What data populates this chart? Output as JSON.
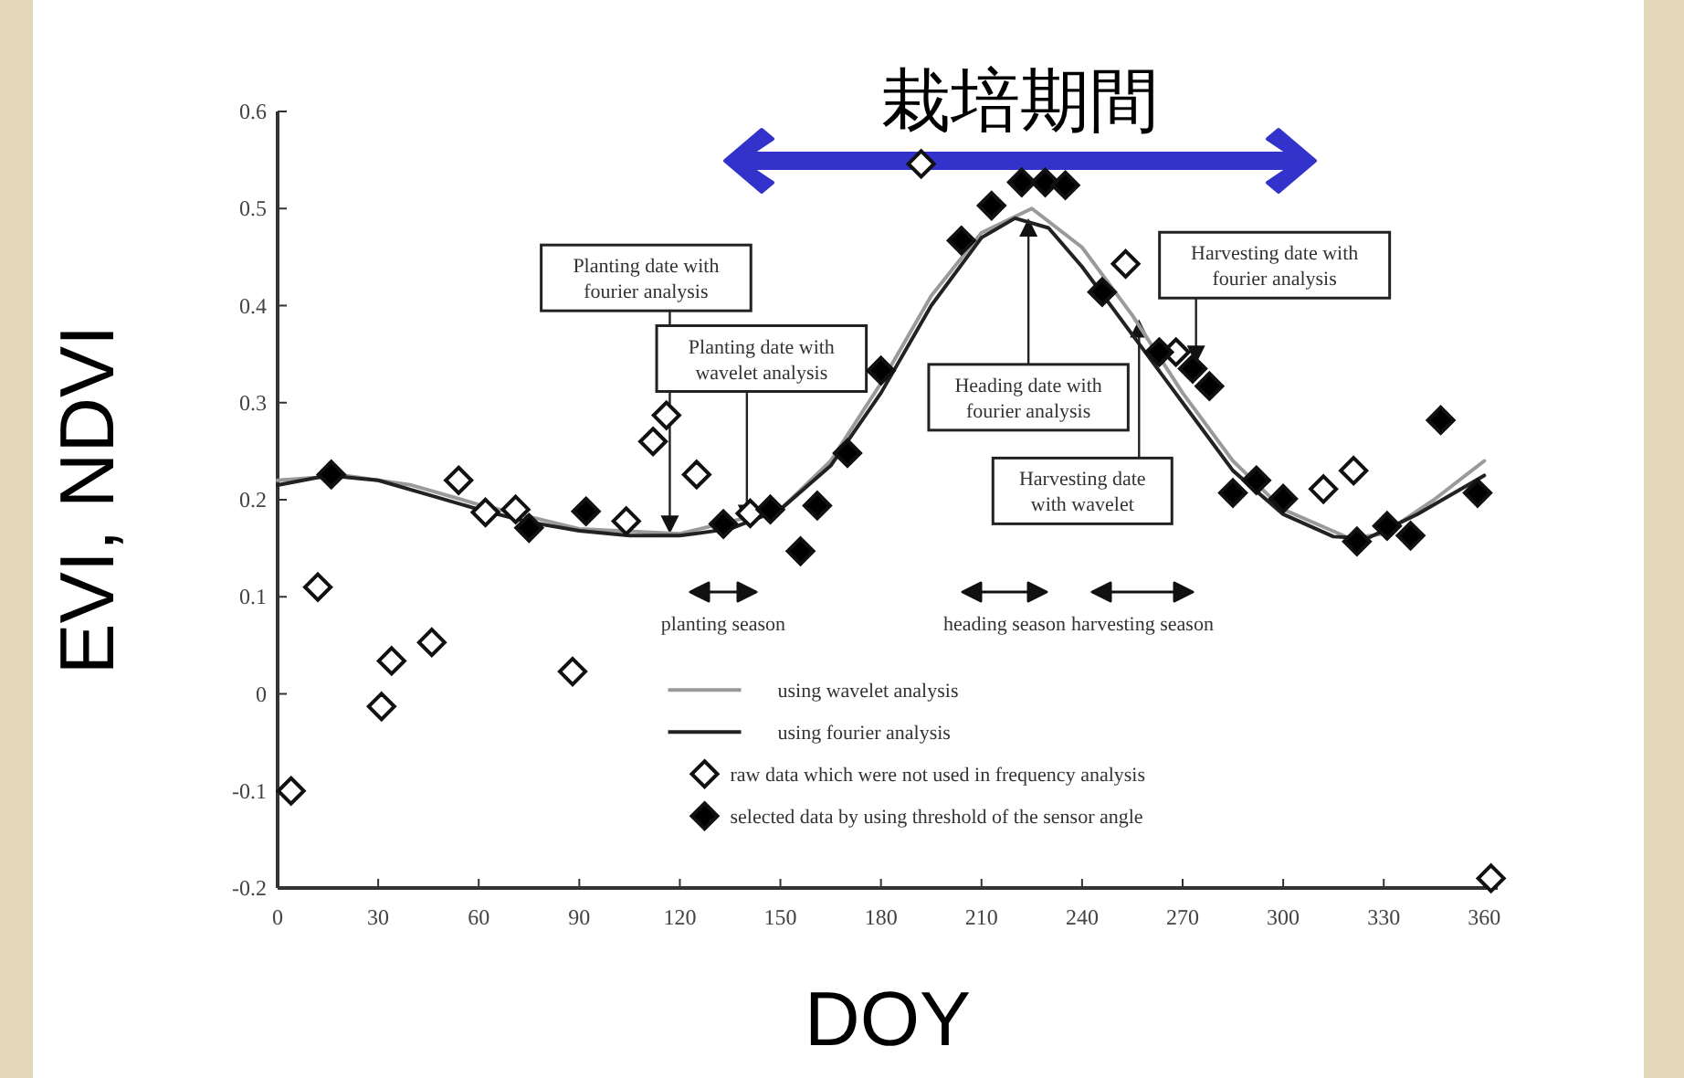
{
  "chart_data": {
    "type": "scatter",
    "xlabel": "DOY",
    "ylabel": "EVI, NDVI",
    "xlim": [
      0,
      364
    ],
    "xticks": [
      0,
      30,
      60,
      90,
      120,
      150,
      180,
      210,
      240,
      270,
      300,
      330,
      360
    ],
    "ylim": [
      -0.2,
      0.6
    ],
    "yticks": [
      {
        "value": -0.2,
        "label": "-0.2"
      },
      {
        "value": -0.1,
        "label": "-0.1"
      },
      0,
      0.1,
      0.2,
      0.3,
      0.4,
      0.5,
      0.6
    ],
    "legend": "bottom",
    "marker": "diamond",
    "series": [
      {
        "name": "using wavelet analysis",
        "type": "line",
        "marker": "none",
        "color": "#9a9a9a",
        "x": [
          0,
          20,
          40,
          60,
          90,
          120,
          150,
          165,
          180,
          195,
          210,
          225,
          240,
          255,
          270,
          285,
          300,
          320,
          330,
          345,
          360
        ],
        "values": [
          0.22,
          0.225,
          0.215,
          0.195,
          0.17,
          0.165,
          0.19,
          0.24,
          0.32,
          0.41,
          0.475,
          0.5,
          0.46,
          0.39,
          0.31,
          0.24,
          0.19,
          0.16,
          0.165,
          0.2,
          0.24
        ]
      },
      {
        "name": "using fourier analysis",
        "type": "line",
        "marker": "none",
        "color": "#222222",
        "x": [
          0,
          15,
          30,
          45,
          60,
          75,
          90,
          105,
          120,
          135,
          150,
          165,
          180,
          195,
          210,
          220,
          230,
          240,
          255,
          270,
          285,
          300,
          315,
          325,
          340,
          360
        ],
        "values": [
          0.215,
          0.225,
          0.22,
          0.205,
          0.19,
          0.177,
          0.168,
          0.163,
          0.163,
          0.17,
          0.19,
          0.235,
          0.31,
          0.4,
          0.47,
          0.49,
          0.48,
          0.44,
          0.37,
          0.3,
          0.23,
          0.185,
          0.162,
          0.16,
          0.185,
          0.225
        ]
      },
      {
        "name": "raw data which were not used in frequency analysis",
        "color": "#ffffff",
        "x": [
          4,
          12,
          31,
          34,
          46,
          54,
          62,
          71,
          88,
          104,
          112,
          116,
          125,
          141,
          192,
          253,
          268,
          312,
          321,
          362
        ],
        "values": [
          -0.1,
          0.11,
          -0.013,
          0.034,
          0.053,
          0.22,
          0.187,
          0.19,
          0.023,
          0.178,
          0.26,
          0.287,
          0.226,
          0.186,
          0.546,
          0.443,
          0.352,
          0.211,
          0.23,
          -0.19
        ]
      },
      {
        "name": "selected data by using threshold of the sensor angle",
        "color": "#000000",
        "x": [
          16,
          75,
          92,
          133,
          147,
          156,
          161,
          170,
          180,
          204,
          213,
          222,
          229,
          235,
          246,
          263,
          273,
          278,
          285,
          292,
          300,
          322,
          331,
          338,
          347,
          358
        ],
        "values": [
          0.226,
          0.171,
          0.188,
          0.175,
          0.19,
          0.147,
          0.194,
          0.248,
          0.333,
          0.467,
          0.503,
          0.527,
          0.527,
          0.524,
          0.414,
          0.352,
          0.335,
          0.317,
          0.207,
          0.22,
          0.201,
          0.157,
          0.173,
          0.163,
          0.282,
          0.207
        ]
      }
    ],
    "annotations": [
      {
        "text": "Planting date with\nfourier analysis",
        "x": 117,
        "y": 0.165
      },
      {
        "text": "Planting date with\nwavelet analysis",
        "x": 140,
        "y": 0.176
      },
      {
        "text": "Heading date with\nfourier analysis",
        "x": 224,
        "y": 0.49
      },
      {
        "text": "Harvesting date\nwith wavelet",
        "x": 257,
        "y": 0.386
      },
      {
        "text": "Harvesting date with\nfourier analysis",
        "x": 274,
        "y": 0.34
      },
      "栽培期間",
      "planting season",
      "heading season",
      "harvesting season"
    ]
  }
}
